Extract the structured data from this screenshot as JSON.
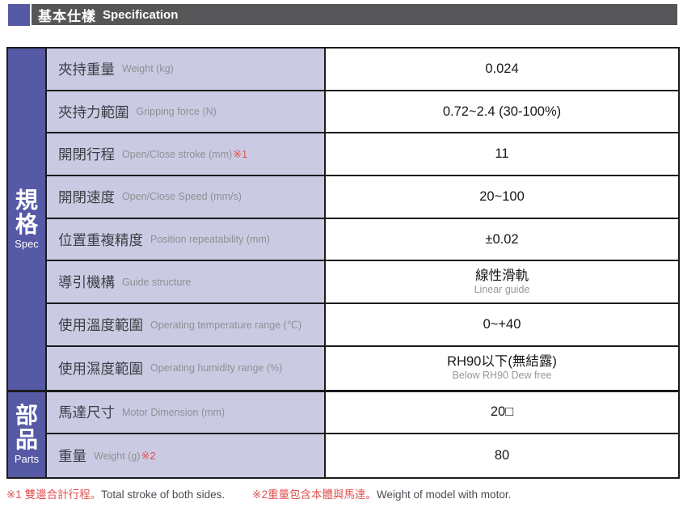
{
  "header": {
    "title_cjk": "基本仕樣",
    "title_en": "Specification"
  },
  "colors": {
    "accent_blue": "#5659a4",
    "header_gray": "#565659",
    "param_lavender": "#cacbe3",
    "note_red": "#e05250",
    "border_black": "#1b1b1b"
  },
  "table": {
    "sections": [
      {
        "label_cjk": "規格",
        "label_en": "Spec"
      },
      {
        "label_cjk": "部品",
        "label_en": "Parts"
      }
    ],
    "rows": [
      {
        "name_cjk": "夾持重量",
        "name_en": "Weight (kg)",
        "note": "",
        "value": "0.024",
        "value_sub": ""
      },
      {
        "name_cjk": "夾持力範圍",
        "name_en": "Gripping force (N)",
        "note": "",
        "value": "0.72~2.4 (30-100%)",
        "value_sub": ""
      },
      {
        "name_cjk": "開閉行程",
        "name_en": "Open/Close  stroke (mm)",
        "note": "※1",
        "value": "11",
        "value_sub": ""
      },
      {
        "name_cjk": "開閉速度",
        "name_en": "Open/Close Speed (mm/s)",
        "note": "",
        "value": "20~100",
        "value_sub": ""
      },
      {
        "name_cjk": "位置重複精度",
        "name_en": "Position repeatability (mm)",
        "note": "",
        "value": "±0.02",
        "value_sub": ""
      },
      {
        "name_cjk": "導引機構",
        "name_en": "Guide structure",
        "note": "",
        "value": "線性滑軌",
        "value_sub": "Linear guide"
      },
      {
        "name_cjk": "使用溫度範圍",
        "name_en": "Operating temperature range (℃)",
        "note": "",
        "value": "0~+40",
        "value_sub": ""
      },
      {
        "name_cjk": "使用濕度範圍",
        "name_en": "Operating humidity range (%)",
        "note": "",
        "value": "RH90以下(無結露)",
        "value_sub": "Below RH90 Dew free"
      },
      {
        "name_cjk": "馬達尺寸",
        "name_en": "Motor Dimension (mm)",
        "note": "",
        "value": "20□",
        "value_sub": ""
      },
      {
        "name_cjk": "重量",
        "name_en": "Weight (g)",
        "note": "※2",
        "value": "80",
        "value_sub": ""
      }
    ]
  },
  "footnotes": [
    {
      "cjk": "※1 雙邊合計行程。",
      "en": "Total stroke of both sides."
    },
    {
      "cjk": "※2重量包含本體與馬達。",
      "en": "Weight of model with motor."
    }
  ]
}
